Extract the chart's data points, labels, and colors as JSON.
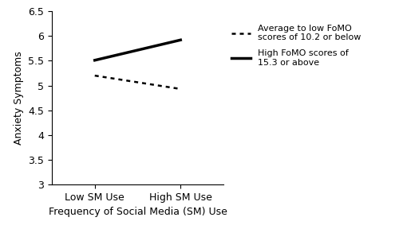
{
  "title": "",
  "xlabel": "Frequency of Social Media (SM) Use",
  "ylabel": "Anxiety Symptoms",
  "x_tick_labels": [
    "Low SM Use",
    "High SM Use"
  ],
  "x_positions": [
    0,
    1
  ],
  "ylim": [
    3,
    6.5
  ],
  "yticks": [
    3,
    3.5,
    4,
    4.5,
    5,
    5.5,
    6,
    6.5
  ],
  "line_low_fomo": [
    5.2,
    4.93
  ],
  "line_high_fomo": [
    5.51,
    5.92
  ],
  "legend_labels": [
    "Average to low FoMO\nscores of 10.2 or below",
    "High FoMO scores of\n15.3 or above"
  ],
  "line_color": "#000000",
  "background_color": "#ffffff",
  "dotted_linewidth": 1.8,
  "solid_linewidth": 2.5,
  "tick_fontsize": 9,
  "label_fontsize": 9,
  "legend_fontsize": 8
}
